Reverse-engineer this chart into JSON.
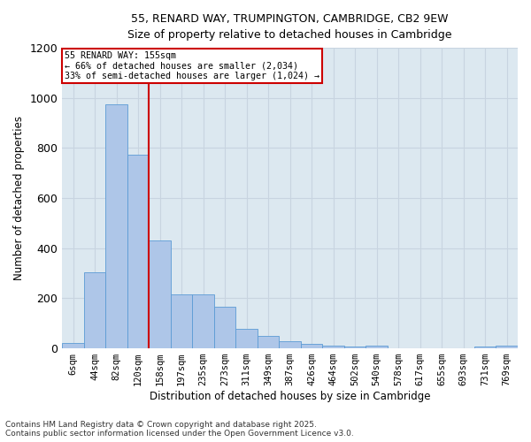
{
  "title_line1": "55, RENARD WAY, TRUMPINGTON, CAMBRIDGE, CB2 9EW",
  "title_line2": "Size of property relative to detached houses in Cambridge",
  "xlabel": "Distribution of detached houses by size in Cambridge",
  "ylabel": "Number of detached properties",
  "categories": [
    "6sqm",
    "44sqm",
    "82sqm",
    "120sqm",
    "158sqm",
    "197sqm",
    "235sqm",
    "273sqm",
    "311sqm",
    "349sqm",
    "387sqm",
    "426sqm",
    "464sqm",
    "502sqm",
    "540sqm",
    "578sqm",
    "617sqm",
    "655sqm",
    "693sqm",
    "731sqm",
    "769sqm"
  ],
  "values": [
    22,
    305,
    975,
    775,
    430,
    215,
    215,
    165,
    78,
    50,
    30,
    18,
    10,
    8,
    10,
    0,
    0,
    0,
    0,
    8,
    12
  ],
  "bar_color": "#aec6e8",
  "bar_edge_color": "#5b9bd5",
  "annotation_line1": "55 RENARD WAY: 155sqm",
  "annotation_line2": "← 66% of detached houses are smaller (2,034)",
  "annotation_line3": "33% of semi-detached houses are larger (1,024) →",
  "vline_color": "#cc0000",
  "annotation_box_edge_color": "#cc0000",
  "ylim": [
    0,
    1200
  ],
  "yticks": [
    0,
    200,
    400,
    600,
    800,
    1000,
    1200
  ],
  "grid_color": "#c8d4e0",
  "bg_color": "#dce8f0",
  "fig_bg_color": "#ffffff",
  "footnote_line1": "Contains HM Land Registry data © Crown copyright and database right 2025.",
  "footnote_line2": "Contains public sector information licensed under the Open Government Licence v3.0."
}
